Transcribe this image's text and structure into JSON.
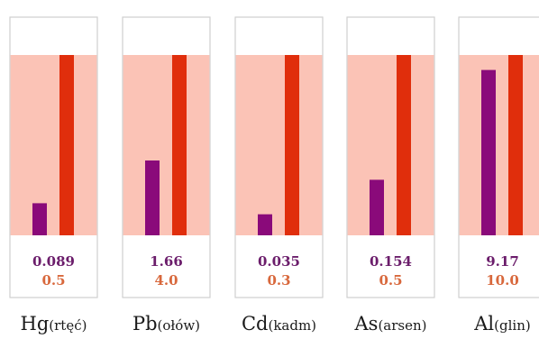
{
  "chart_data": {
    "type": "bar",
    "categories": [
      "Hg",
      "Pb",
      "Cd",
      "As",
      "Al"
    ],
    "category_names": [
      "rtęć",
      "ołów",
      "kadm",
      "arsen",
      "glin"
    ],
    "series": [
      {
        "values": [
          0.089,
          1.66,
          0.035,
          0.154,
          9.17
        ]
      },
      {
        "values": [
          0.5,
          4.0,
          0.3,
          0.5,
          10.0
        ]
      }
    ],
    "value_labels": {
      "measured": [
        "0.089",
        "1.66",
        "0.035",
        "0.154",
        "9.17"
      ],
      "limit": [
        "0.5",
        "4.0",
        "0.3",
        "0.5",
        "10.0"
      ]
    },
    "normalization": "each panel scaled so the limit bar spans the shaded band",
    "colors": {
      "measured": "#8a0a7a",
      "limit": "#e02e0c",
      "band": "#fbc3b6",
      "frame": "#cfcfcf"
    }
  }
}
